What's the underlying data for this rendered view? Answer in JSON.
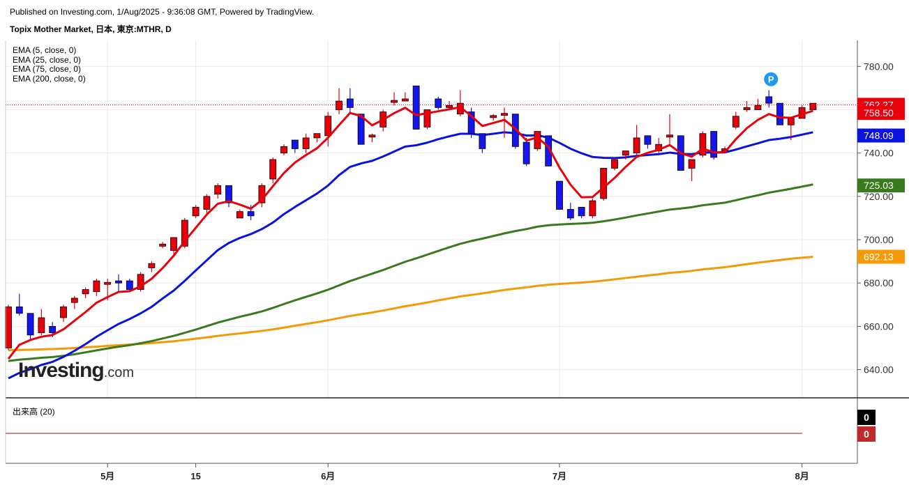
{
  "header": {
    "published": "Published on Investing.com, 1/Aug/2025 - 9:36:08 GMT, Powered by TradingView.",
    "symbol": "Topix Mother Market, 日本, 東京:MTHR, D"
  },
  "indicators": [
    "EMA (5, close, 0)",
    "EMA (25, close, 0)",
    "EMA (75, close, 0)",
    "EMA (200, close, 0)"
  ],
  "volume_panel": {
    "label": "出来高 (20)",
    "values": [
      "0",
      "0"
    ]
  },
  "logo": {
    "main": "Investing",
    "suffix": ".com"
  },
  "marker": {
    "letter": "P"
  },
  "chart_data": {
    "type": "candlestick",
    "title": "Topix Mother Market, 日本, 東京:MTHR, D",
    "ylim": [
      627,
      792
    ],
    "y_ticks": [
      "780.00",
      "760.00",
      "740.00",
      "720.00",
      "700.00",
      "680.00",
      "660.00",
      "640.00"
    ],
    "x_ticks": [
      {
        "i": 9,
        "label": "5月"
      },
      {
        "i": 17,
        "label": "15"
      },
      {
        "i": 29,
        "label": "6月"
      },
      {
        "i": 50,
        "label": "7月"
      },
      {
        "i": 72,
        "label": "8月"
      }
    ],
    "price_line": 762.27,
    "colors": {
      "up": "#e8000b",
      "down": "#1515ee",
      "ema5": "#e8000b",
      "ema25": "#0a12e0",
      "ema75": "#3a7a1f",
      "ema200": "#f59a07"
    },
    "candles": [
      [
        650,
        670,
        669,
        649
      ],
      [
        669,
        675,
        666,
        665
      ],
      [
        666,
        666,
        656,
        654
      ],
      [
        657,
        668,
        664,
        656
      ],
      [
        660,
        662,
        657,
        655
      ],
      [
        664,
        670,
        669,
        662
      ],
      [
        671,
        674,
        673,
        668
      ],
      [
        675,
        678,
        677,
        673
      ],
      [
        676,
        682,
        681,
        674
      ],
      [
        680,
        682,
        680,
        672
      ],
      [
        681,
        684,
        680,
        676
      ],
      [
        681,
        682,
        677,
        676
      ],
      [
        677,
        685,
        684,
        676
      ],
      [
        687,
        690,
        689,
        685
      ],
      [
        697,
        699,
        698,
        696
      ],
      [
        695,
        701,
        701,
        693
      ],
      [
        697,
        710,
        709,
        696
      ],
      [
        711,
        716,
        715,
        710
      ],
      [
        714,
        721,
        720,
        712
      ],
      [
        721,
        726,
        725,
        719
      ],
      [
        725,
        725,
        717,
        715
      ],
      [
        710,
        714,
        713,
        710
      ],
      [
        713,
        716,
        711,
        709
      ],
      [
        717,
        726,
        725,
        715
      ],
      [
        728,
        738,
        737,
        726
      ],
      [
        740,
        744,
        743,
        739
      ],
      [
        746,
        746,
        742,
        740
      ],
      [
        742,
        749,
        747,
        740
      ],
      [
        747,
        749,
        749,
        745
      ],
      [
        748,
        759,
        757,
        743
      ],
      [
        760,
        770,
        764,
        758
      ],
      [
        765,
        770,
        761,
        758
      ],
      [
        758,
        758,
        744,
        744
      ],
      [
        748,
        749,
        748,
        745
      ],
      [
        752,
        760,
        759,
        750
      ],
      [
        764,
        768,
        764,
        762
      ],
      [
        764,
        768,
        765,
        764
      ],
      [
        771,
        771,
        751,
        751
      ],
      [
        752,
        760,
        760,
        751
      ],
      [
        765,
        766,
        761,
        760
      ],
      [
        761,
        764,
        762,
        760
      ],
      [
        758,
        769,
        763,
        757
      ],
      [
        759,
        761,
        749,
        747
      ],
      [
        749,
        749,
        742,
        740
      ],
      [
        757,
        758,
        757,
        755
      ],
      [
        758,
        761,
        758,
        747
      ],
      [
        758,
        758,
        743,
        742
      ],
      [
        745,
        747,
        735,
        734
      ],
      [
        742,
        750,
        750,
        741
      ],
      [
        748,
        748,
        734,
        734
      ],
      [
        727,
        727,
        714,
        714
      ],
      [
        714,
        717,
        710,
        709
      ],
      [
        715,
        715,
        711,
        710
      ],
      [
        711,
        719,
        718,
        710
      ],
      [
        719,
        733,
        733,
        718
      ],
      [
        733,
        737,
        737,
        732
      ],
      [
        739,
        741,
        741,
        737
      ],
      [
        740,
        753,
        747,
        739
      ],
      [
        748,
        748,
        744,
        742
      ],
      [
        741,
        747,
        744,
        740
      ],
      [
        748,
        758,
        748,
        744
      ],
      [
        748,
        748,
        732,
        732
      ],
      [
        733,
        737,
        737,
        727
      ],
      [
        739,
        750,
        749,
        738
      ],
      [
        750,
        750,
        738,
        737
      ],
      [
        741,
        743,
        742,
        740
      ],
      [
        752,
        759,
        757,
        751
      ],
      [
        760,
        764,
        761,
        759
      ],
      [
        760,
        765,
        762,
        760
      ],
      [
        766,
        769,
        763,
        761
      ],
      [
        763,
        763,
        753,
        753
      ],
      [
        753,
        756,
        756,
        746
      ],
      [
        756,
        762,
        761,
        756
      ],
      [
        760,
        763,
        763,
        760
      ]
    ],
    "ema5": [
      645,
      651.5,
      653.7,
      655.2,
      656,
      658.6,
      662.6,
      666.6,
      670.9,
      673.5,
      675.9,
      676.2,
      678.5,
      682,
      686.9,
      692.6,
      699.3,
      705.5,
      711.6,
      716.6,
      717.8,
      716.2,
      714.3,
      718.4,
      724.7,
      730.8,
      735.6,
      739.1,
      742.2,
      747.1,
      752.9,
      758.5,
      757.1,
      752.8,
      755.4,
      758.4,
      760.9,
      757.5,
      758.4,
      759.3,
      760.2,
      761.2,
      757.1,
      752.5,
      753.9,
      755.3,
      751.2,
      745.8,
      747.2,
      742.8,
      733.3,
      725.4,
      719.6,
      719.7,
      724.1,
      728.5,
      733.6,
      738.2,
      740.1,
      741.5,
      743.7,
      740,
      738.3,
      742.1,
      740.3,
      740.4,
      746.4,
      751.5,
      755.3,
      758,
      756.4,
      756.3,
      757.9,
      759.5
    ],
    "ema25": [
      636,
      638.5,
      640.2,
      642.2,
      643.6,
      645.9,
      648.7,
      651.8,
      655.2,
      658.2,
      661.1,
      663.4,
      666,
      669,
      672.9,
      676.5,
      681,
      685.8,
      690.5,
      695.2,
      698.5,
      700.8,
      702.6,
      704.9,
      707.9,
      711.8,
      715.1,
      718.2,
      721.3,
      725,
      729.8,
      733.6,
      735.2,
      736.4,
      738.4,
      740.7,
      743,
      743.6,
      744.8,
      746.4,
      747.7,
      748.9,
      748.9,
      748.3,
      748.9,
      749.6,
      749.2,
      748.1,
      748.2,
      747.1,
      744.7,
      742,
      739.9,
      738.2,
      737.8,
      737.7,
      738.0,
      738.7,
      739.1,
      739.5,
      740.2,
      739.6,
      739.5,
      740.3,
      740.2,
      740.3,
      741.6,
      743.1,
      744.5,
      746,
      746.6,
      747.4,
      748.5,
      749.6
    ],
    "ema75": [
      644,
      644.6,
      645,
      645.5,
      645.8,
      646.4,
      647.1,
      648,
      648.9,
      649.8,
      650.6,
      651.3,
      652.2,
      653.2,
      654.4,
      655.6,
      657,
      658.5,
      660.1,
      661.7,
      663.1,
      664.4,
      665.6,
      666.9,
      668.5,
      670.3,
      672,
      673.6,
      675.2,
      676.9,
      678.9,
      680.9,
      682.6,
      684.3,
      686.0,
      687.9,
      689.8,
      691.4,
      693.1,
      694.8,
      696.5,
      698.1,
      699.4,
      700.5,
      701.7,
      702.9,
      704.0,
      704.9,
      706,
      706.7,
      707.0,
      707.3,
      707.5,
      707.8,
      708.5,
      709.3,
      710.2,
      711.2,
      712.1,
      713.0,
      713.9,
      714.4,
      715,
      715.9,
      716.5,
      717.1,
      718.2,
      719.4,
      720.5,
      721.7,
      722.6,
      723.5,
      724.5,
      725.5
    ],
    "ema200": [
      648.9,
      649.1,
      649.2,
      649.4,
      649.5,
      649.7,
      650,
      650.3,
      650.6,
      651,
      651.3,
      651.6,
      651.9,
      652.3,
      652.7,
      653.1,
      653.7,
      654.3,
      654.9,
      655.6,
      656.2,
      656.7,
      657.3,
      657.9,
      658.6,
      659.4,
      660.3,
      661.1,
      661.9,
      662.8,
      663.8,
      664.8,
      665.6,
      666.4,
      667.3,
      668.3,
      669.3,
      670.1,
      671,
      672,
      672.9,
      673.8,
      674.5,
      675.2,
      676,
      676.8,
      677.4,
      678,
      678.7,
      679.2,
      679.6,
      679.9,
      680.2,
      680.6,
      681.1,
      681.7,
      682.3,
      682.9,
      683.5,
      684,
      684.7,
      685.1,
      685.6,
      686.3,
      686.8,
      687.3,
      688,
      688.7,
      689.4,
      690,
      690.6,
      691.2,
      691.7,
      692.1
    ],
    "last_labels": [
      {
        "value": 762.27,
        "text": "762.27",
        "bg": "#e8000b"
      },
      {
        "value": 758.5,
        "text": "758.50",
        "bg": "#e8000b"
      },
      {
        "value": 748.09,
        "text": "748.09",
        "bg": "#0a12e0"
      },
      {
        "value": 725.03,
        "text": "725.03",
        "bg": "#3a7a1f"
      },
      {
        "value": 692.13,
        "text": "692.13",
        "bg": "#f59a07"
      }
    ]
  }
}
